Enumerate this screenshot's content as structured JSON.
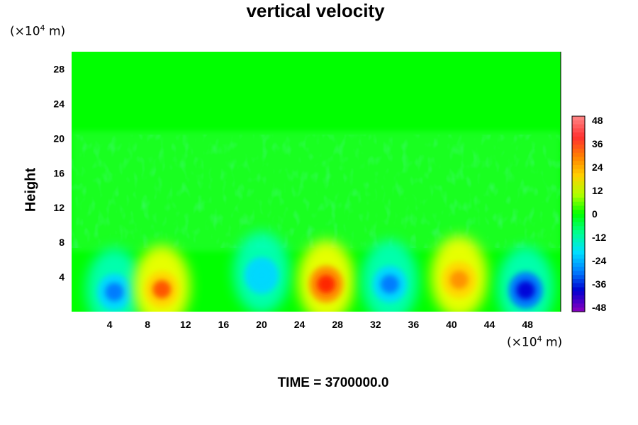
{
  "chart_data": {
    "type": "heatmap",
    "title": "vertical velocity",
    "ylabel": "Height",
    "x_unit_base": "10",
    "x_unit_exp": "4",
    "y_unit_base": "10",
    "y_unit_exp": "4",
    "unit": "m",
    "footer_label": "TIME",
    "footer_value": "3700000.0",
    "x_ticks": [
      "4",
      "8",
      "12",
      "16",
      "20",
      "24",
      "28",
      "32",
      "36",
      "40",
      "44",
      "48"
    ],
    "y_ticks": [
      "4",
      "8",
      "12",
      "16",
      "20",
      "24",
      "28"
    ],
    "xlim": [
      0,
      51.5
    ],
    "ylim": [
      0,
      30
    ],
    "colorbar": {
      "range": [
        -48,
        48
      ],
      "ticks": [
        "48",
        "36",
        "24",
        "12",
        "0",
        "-12",
        "-24",
        "-36",
        "-48"
      ],
      "colors": [
        "#ff8080",
        "#ff3030",
        "#ff8000",
        "#ffd000",
        "#b0ff00",
        "#00ff00",
        "#00ff90",
        "#00e0ff",
        "#0080ff",
        "#0000d0",
        "#8000c0"
      ]
    },
    "features": [
      {
        "x": 4.5,
        "y": 2.6,
        "value": -26
      },
      {
        "x": 9.5,
        "y": 2.9,
        "value": 30
      },
      {
        "x": 20.0,
        "y": 4.5,
        "value": -20
      },
      {
        "x": 26.8,
        "y": 3.5,
        "value": 38
      },
      {
        "x": 33.5,
        "y": 3.5,
        "value": -30
      },
      {
        "x": 40.8,
        "y": 4.0,
        "value": 28
      },
      {
        "x": 47.8,
        "y": 2.8,
        "value": -40
      }
    ]
  }
}
